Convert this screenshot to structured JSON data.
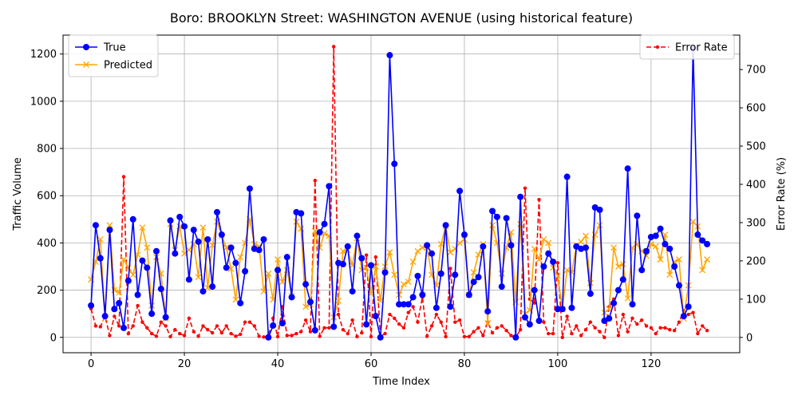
{
  "chart_data": {
    "type": "line",
    "title": "Boro: BROOKLYN Street: WASHINGTON AVENUE (using historical feature)",
    "xlabel": "Time Index",
    "ylabel": "Traffic Volume",
    "y2label": "Error Rate (%)",
    "xlim": [
      -6,
      139
    ],
    "ylim": [
      -65,
      1280
    ],
    "y2lim": [
      -40,
      790
    ],
    "x_ticks": [
      0,
      20,
      40,
      60,
      80,
      100,
      120
    ],
    "y_ticks": [
      0,
      200,
      400,
      600,
      800,
      1000,
      1200
    ],
    "y2_ticks": [
      0,
      100,
      200,
      300,
      400,
      500,
      600,
      700
    ],
    "grid": true,
    "legend_left_placement": "upper-left",
    "legend_right_placement": "upper-right",
    "series": [
      {
        "name": "True",
        "axis": "left",
        "color": "#0000ff",
        "marker": "circle",
        "values": [
          135,
          475,
          335,
          90,
          455,
          120,
          145,
          40,
          240,
          500,
          180,
          325,
          295,
          100,
          365,
          205,
          85,
          495,
          355,
          510,
          470,
          245,
          455,
          405,
          195,
          415,
          215,
          530,
          435,
          295,
          380,
          315,
          145,
          280,
          630,
          375,
          370,
          415,
          0,
          50,
          285,
          60,
          340,
          170,
          530,
          525,
          225,
          150,
          30,
          445,
          480,
          640,
          45,
          315,
          310,
          385,
          195,
          430,
          335,
          55,
          305,
          90,
          0,
          275,
          1195,
          735,
          140,
          140,
          140,
          170,
          260,
          180,
          390,
          355,
          125,
          270,
          475,
          130,
          265,
          620,
          435,
          180,
          235,
          255,
          385,
          110,
          535,
          510,
          215,
          505,
          390,
          0,
          595,
          85,
          55,
          200,
          70,
          300,
          355,
          320,
          120,
          120,
          680,
          125,
          385,
          375,
          380,
          185,
          550,
          540,
          70,
          80,
          145,
          200,
          245,
          715,
          140,
          515,
          285,
          365,
          425,
          430,
          460,
          395,
          375,
          300,
          220,
          90,
          130,
          1225,
          435,
          410,
          395
        ]
      },
      {
        "name": "Predicted",
        "axis": "left",
        "color": "#ffa500",
        "marker": "x",
        "values": [
          245,
          320,
          415,
          80,
          475,
          200,
          190,
          330,
          295,
          265,
          350,
          465,
          380,
          135,
          340,
          270,
          80,
          480,
          370,
          470,
          355,
          370,
          395,
          255,
          465,
          210,
          390,
          490,
          430,
          380,
          290,
          160,
          340,
          400,
          500,
          395,
          385,
          195,
          270,
          160,
          330,
          235,
          285,
          175,
          490,
          460,
          130,
          140,
          450,
          380,
          440,
          430,
          85,
          155,
          365,
          370,
          305,
          420,
          285,
          295,
          185,
          300,
          155,
          300,
          360,
          265,
          180,
          225,
          235,
          320,
          365,
          380,
          380,
          265,
          220,
          395,
          470,
          360,
          375,
          400,
          415,
          180,
          275,
          350,
          395,
          60,
          475,
          400,
          270,
          380,
          445,
          150,
          480,
          100,
          115,
          375,
          330,
          415,
          400,
          295,
          260,
          120,
          285,
          275,
          390,
          405,
          430,
          230,
          435,
          475,
          105,
          120,
          380,
          300,
          310,
          165,
          380,
          395,
          365,
          345,
          395,
          385,
          330,
          435,
          265,
          320,
          330,
          80,
          220,
          490,
          470,
          285,
          330
        ]
      },
      {
        "name": "Error Rate",
        "axis": "right",
        "color": "#ff0000",
        "marker": "dot",
        "dashed": true,
        "values": [
          75,
          30,
          28,
          55,
          5,
          55,
          30,
          420,
          10,
          30,
          83,
          40,
          25,
          10,
          3,
          40,
          30,
          2,
          20,
          10,
          5,
          50,
          15,
          3,
          30,
          20,
          12,
          30,
          12,
          30,
          10,
          3,
          8,
          40,
          40,
          30,
          3,
          1,
          5,
          50,
          2,
          80,
          5,
          5,
          10,
          15,
          45,
          15,
          410,
          3,
          25,
          25,
          760,
          60,
          20,
          10,
          45,
          2,
          12,
          215,
          2,
          210,
          2,
          10,
          60,
          50,
          35,
          25,
          65,
          80,
          40,
          105,
          3,
          30,
          60,
          40,
          2,
          180,
          40,
          45,
          2,
          2,
          15,
          25,
          5,
          40,
          12,
          25,
          30,
          18,
          5,
          0,
          20,
          390,
          100,
          90,
          360,
          40,
          10,
          10,
          195,
          0,
          55,
          10,
          30,
          5,
          20,
          40,
          25,
          15,
          0,
          80,
          100,
          5,
          60,
          15,
          50,
          35,
          45,
          30,
          25,
          10,
          25,
          25,
          20,
          18,
          40,
          70,
          60,
          65,
          10,
          30,
          18
        ]
      }
    ]
  }
}
